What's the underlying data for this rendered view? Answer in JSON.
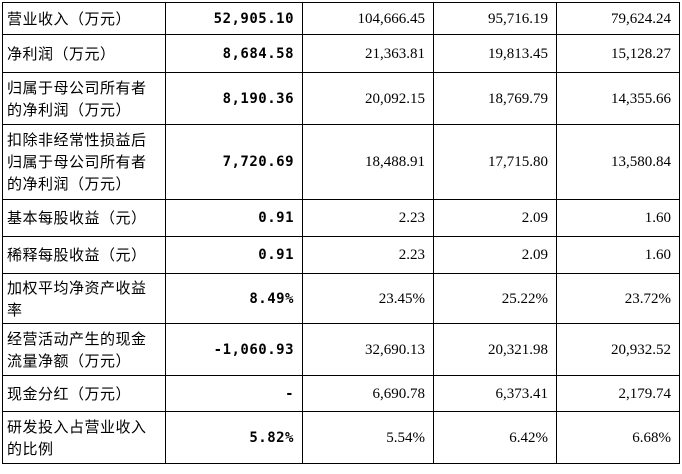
{
  "rows": [
    {
      "label": [
        "营业收入（万元）"
      ],
      "values": [
        "52,905.10",
        "104,666.45",
        "95,716.19",
        "79,624.24"
      ]
    },
    {
      "label": [
        "净利润（万元）"
      ],
      "values": [
        "8,684.58",
        "21,363.81",
        "19,813.45",
        "15,128.27"
      ]
    },
    {
      "label": [
        "归属于母公司所有者",
        "的净利润（万元）"
      ],
      "values": [
        "8,190.36",
        "20,092.15",
        "18,769.79",
        "14,355.66"
      ]
    },
    {
      "label": [
        "扣除非经常性损益后",
        "归属于母公司所有者",
        "的净利润（万元）"
      ],
      "values": [
        "7,720.69",
        "18,488.91",
        "17,715.80",
        "13,580.84"
      ]
    },
    {
      "label": [
        "基本每股收益（元）"
      ],
      "values": [
        "0.91",
        "2.23",
        "2.09",
        "1.60"
      ]
    },
    {
      "label": [
        "稀释每股收益（元）"
      ],
      "values": [
        "0.91",
        "2.23",
        "2.09",
        "1.60"
      ]
    },
    {
      "label": [
        "加权平均净资产收益",
        "率"
      ],
      "values": [
        "8.49%",
        "23.45%",
        "25.22%",
        "23.72%"
      ]
    },
    {
      "label": [
        "经营活动产生的现金",
        "流量净额（万元）"
      ],
      "values": [
        "-1,060.93",
        "32,690.13",
        "20,321.98",
        "20,932.52"
      ]
    },
    {
      "label": [
        "现金分红（万元）"
      ],
      "values": [
        "-",
        "6,690.78",
        "6,373.41",
        "2,179.74"
      ]
    },
    {
      "label": [
        "研发投入占营业收入",
        "的比例"
      ],
      "values": [
        "5.82%",
        "5.54%",
        "6.42%",
        "6.68%"
      ]
    }
  ]
}
